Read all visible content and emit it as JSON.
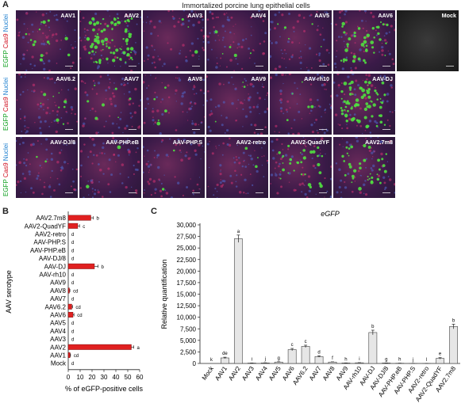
{
  "panel_a": {
    "label": "A",
    "title": "Immortalized porcine lung epithelial cells",
    "row_labels": [
      {
        "egfp": "EGFP",
        "cas9": "Cas9",
        "nuclei": "Nuclei"
      },
      {
        "egfp": "EGFP",
        "cas9": "Cas9",
        "nuclei": "Nuclei"
      },
      {
        "egfp": "EGFP",
        "cas9": "Cas9",
        "nuclei": "Nuclei"
      }
    ],
    "tiles": [
      [
        "AAV1",
        "AAV2",
        "AAV3",
        "AAV4",
        "AAV5",
        "AAV6",
        "Mock"
      ],
      [
        "AAV6.2",
        "AAV7",
        "AAV8",
        "AAV9",
        "AAV-rh10",
        "AAV-DJ"
      ],
      [
        "AAV-DJ/8",
        "AAV-PHP.eB",
        "AAV-PHP.S",
        "AAV2-retro",
        "AAV2-QuadYF",
        "AAV2.7m8"
      ]
    ],
    "green_levels": [
      [
        0.15,
        0.95,
        0.03,
        0.05,
        0.06,
        0.45,
        0.0
      ],
      [
        0.1,
        0.08,
        0.05,
        0.03,
        0.05,
        0.85
      ],
      [
        0.02,
        0.02,
        0.02,
        0.03,
        0.35,
        0.4
      ]
    ]
  },
  "chart_data": [
    {
      "type": "bar",
      "panel_label": "B",
      "orientation": "horizontal",
      "categories": [
        "AAV2.7m8",
        "AAV2-QuadYF",
        "AAV2-retro",
        "AAV-PHP.S",
        "AAV-PHP.eB",
        "AAV-DJ/8",
        "AAV-DJ",
        "AAV-rh10",
        "AAV9",
        "AAV8",
        "AAV7",
        "AAV6.2",
        "AAV6",
        "AAV5",
        "AAV4",
        "AAV3",
        "AAV2",
        "AAV1",
        "Mock"
      ],
      "values": [
        19,
        8,
        0,
        0,
        0,
        0,
        22,
        0,
        0,
        1,
        0,
        3,
        4,
        0,
        0,
        0,
        53,
        1.5,
        0
      ],
      "errors": [
        2,
        1.5,
        0,
        0,
        0,
        0,
        3,
        0,
        0,
        0.4,
        0,
        0.6,
        0.8,
        0,
        0,
        0,
        2,
        0.4,
        0
      ],
      "letters": [
        "b",
        "c",
        "d",
        "d",
        "d",
        "d",
        "b",
        "d",
        "d",
        "cd",
        "d",
        "cd",
        "cd",
        "d",
        "d",
        "d",
        "a",
        "cd",
        "d"
      ],
      "xlabel": "% of eGFP-positive cells",
      "ylabel": "AAV serotype",
      "xlim": [
        0,
        60
      ],
      "xticks": [
        "0",
        "10",
        "20",
        "30",
        "40",
        "50",
        "60"
      ],
      "color": "#e02020"
    },
    {
      "type": "bar",
      "panel_label": "C",
      "title": "eGFP",
      "categories": [
        "Mock",
        "AAV1",
        "AAV2",
        "AAV3",
        "AAV4",
        "AAV5",
        "AAV6",
        "AAV6.2",
        "AAV7",
        "AAV8",
        "AAV9",
        "AAV-rh10",
        "AAV-DJ",
        "AAV-DJ/8",
        "AAV-PHP.eB",
        "AAV-PHP.S",
        "AAV2-retro",
        "AAV2-QuadYF",
        "AAV2.7m8"
      ],
      "values": [
        0,
        1200,
        27000,
        80,
        120,
        300,
        3000,
        3700,
        1500,
        300,
        100,
        150,
        6700,
        100,
        50,
        20,
        10,
        1100,
        8000
      ],
      "errors": [
        0,
        150,
        800,
        20,
        30,
        60,
        250,
        250,
        150,
        50,
        20,
        30,
        500,
        20,
        10,
        5,
        5,
        150,
        500
      ],
      "letters": [
        "k",
        "de",
        "a",
        "i",
        "j",
        "g",
        "c",
        "c",
        "d",
        "f",
        "h",
        "i",
        "b",
        "g",
        "h",
        "j",
        "l",
        "e",
        "b"
      ],
      "ylabel": "Relative quantification",
      "ylim": [
        0,
        30000
      ],
      "yticks": [
        "0",
        "2,500",
        "5,000",
        "7,500",
        "10,000",
        "12,500",
        "15,000",
        "17,500",
        "20,000",
        "22,500",
        "25,000",
        "27,500",
        "30,000"
      ],
      "color": "#e6e6e6"
    }
  ]
}
